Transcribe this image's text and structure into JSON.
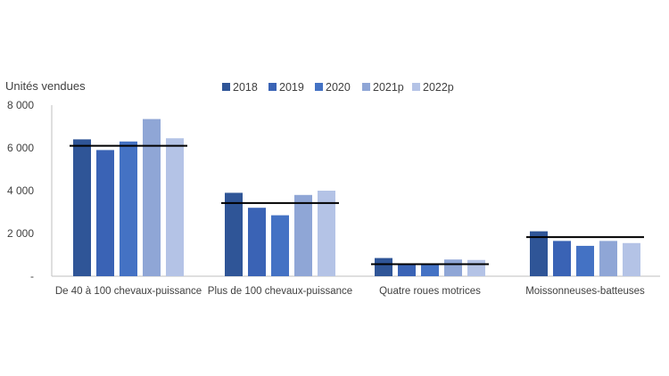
{
  "chart_data": {
    "type": "bar",
    "ylabel": "Unités vendues",
    "ylim": [
      0,
      8000
    ],
    "yticks": [
      {
        "value": 0,
        "label": "-"
      },
      {
        "value": 2000,
        "label": "2 000"
      },
      {
        "value": 4000,
        "label": "4 000"
      },
      {
        "value": 6000,
        "label": "6 000"
      },
      {
        "value": 8000,
        "label": "8 000"
      }
    ],
    "grid": false,
    "legend_position": "top-center",
    "categories": [
      "De 40 à 100 chevaux-puissance",
      "Plus de 100 chevaux-puissance",
      "Quatre roues motrices",
      "Moissonneuses-batteuses"
    ],
    "series": [
      {
        "name": "2018",
        "color": "#2f5597",
        "values": [
          6400,
          3900,
          850,
          2100
        ]
      },
      {
        "name": "2019",
        "color": "#3a63b5",
        "values": [
          5900,
          3200,
          570,
          1650
        ]
      },
      {
        "name": "2020",
        "color": "#4472c4",
        "values": [
          6300,
          2850,
          570,
          1420
        ]
      },
      {
        "name": "2021p",
        "color": "#8fa6d6",
        "values": [
          7350,
          3800,
          780,
          1650
        ]
      },
      {
        "name": "2022p",
        "color": "#b4c3e6",
        "values": [
          6450,
          4000,
          760,
          1550
        ]
      }
    ],
    "average_lines": {
      "color": "#000000",
      "values": [
        6100,
        3420,
        560,
        1830
      ]
    }
  }
}
